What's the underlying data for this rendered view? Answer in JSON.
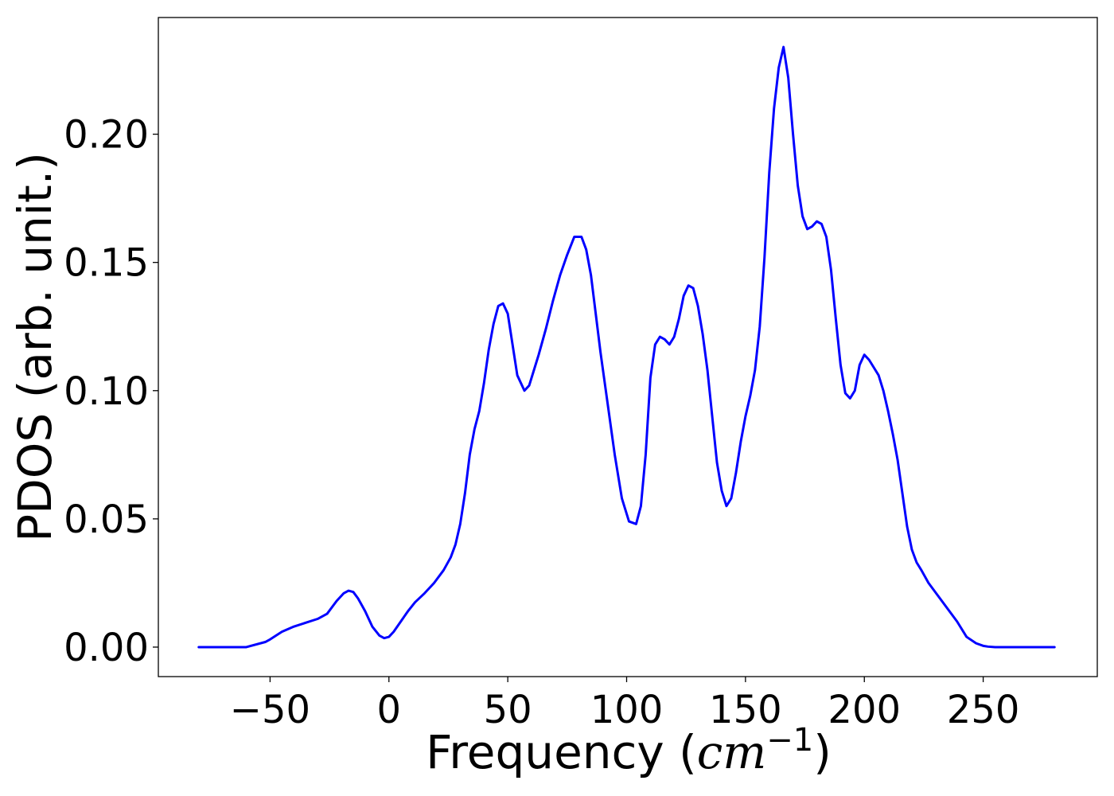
{
  "chart_data": {
    "type": "line",
    "title": "",
    "xlabel": "Frequency (",
    "xlabel_math": "cm",
    "xlabel_sup": "−1",
    "xlabel_close": ")",
    "ylabel": "PDOS (arb. unit.)",
    "xlim": [
      -97,
      298
    ],
    "ylim": [
      -0.0115,
      0.2455
    ],
    "x_ticks": [
      -50,
      0,
      50,
      100,
      150,
      200,
      250
    ],
    "x_tick_labels": [
      "−50",
      "0",
      "50",
      "100",
      "150",
      "200",
      "250"
    ],
    "y_ticks": [
      0.0,
      0.05,
      0.1,
      0.15,
      0.2
    ],
    "y_tick_labels": [
      "0.00",
      "0.05",
      "0.10",
      "0.15",
      "0.20"
    ],
    "grid": false,
    "series": [
      {
        "color": "#0000ff",
        "x": [
          -80,
          -60,
          -52,
          -50,
          -45,
          -40,
          -35,
          -30,
          -26,
          -22,
          -19,
          -17,
          -15,
          -13,
          -10,
          -7,
          -4,
          -2,
          0,
          2,
          5,
          8,
          11,
          15,
          19,
          23,
          26,
          28,
          30,
          32,
          34,
          36,
          38,
          40,
          42,
          44,
          46,
          48,
          50,
          52,
          54,
          57,
          59,
          61,
          63,
          66,
          69,
          72,
          75,
          78,
          81,
          83,
          85,
          87,
          89,
          92,
          95,
          98,
          101,
          104,
          106,
          108,
          110,
          112,
          114,
          116,
          118,
          120,
          122,
          124,
          126,
          128,
          130,
          132,
          134,
          136,
          138,
          140,
          142,
          144,
          146,
          148,
          150,
          152,
          154,
          156,
          158,
          160,
          162,
          164,
          166,
          168,
          170,
          172,
          174,
          176,
          178,
          180,
          182,
          184,
          186,
          188,
          190,
          192,
          194,
          196,
          198,
          200,
          202,
          204,
          206,
          208,
          210,
          212,
          214,
          216,
          218,
          220,
          222,
          224,
          227,
          231,
          235,
          239,
          243,
          247,
          250,
          252,
          255,
          260,
          280
        ],
        "y": [
          0.0,
          0.0,
          0.002,
          0.003,
          0.006,
          0.008,
          0.0095,
          0.011,
          0.013,
          0.018,
          0.021,
          0.022,
          0.0215,
          0.019,
          0.014,
          0.008,
          0.0045,
          0.0035,
          0.004,
          0.006,
          0.01,
          0.014,
          0.0175,
          0.021,
          0.025,
          0.03,
          0.035,
          0.04,
          0.048,
          0.06,
          0.075,
          0.085,
          0.092,
          0.103,
          0.116,
          0.126,
          0.133,
          0.134,
          0.13,
          0.118,
          0.106,
          0.1,
          0.102,
          0.108,
          0.114,
          0.124,
          0.135,
          0.145,
          0.153,
          0.16,
          0.16,
          0.155,
          0.145,
          0.13,
          0.115,
          0.095,
          0.075,
          0.058,
          0.049,
          0.048,
          0.055,
          0.075,
          0.105,
          0.118,
          0.121,
          0.12,
          0.118,
          0.121,
          0.128,
          0.137,
          0.141,
          0.14,
          0.133,
          0.122,
          0.108,
          0.09,
          0.072,
          0.061,
          0.055,
          0.058,
          0.068,
          0.08,
          0.09,
          0.098,
          0.108,
          0.125,
          0.152,
          0.185,
          0.21,
          0.226,
          0.234,
          0.222,
          0.2,
          0.18,
          0.168,
          0.163,
          0.164,
          0.166,
          0.165,
          0.16,
          0.147,
          0.128,
          0.11,
          0.099,
          0.097,
          0.1,
          0.11,
          0.114,
          0.112,
          0.109,
          0.106,
          0.1,
          0.092,
          0.083,
          0.073,
          0.06,
          0.047,
          0.038,
          0.033,
          0.03,
          0.025,
          0.02,
          0.015,
          0.01,
          0.004,
          0.0015,
          0.0005,
          0.0002,
          0.0,
          0.0,
          0.0
        ]
      }
    ]
  }
}
